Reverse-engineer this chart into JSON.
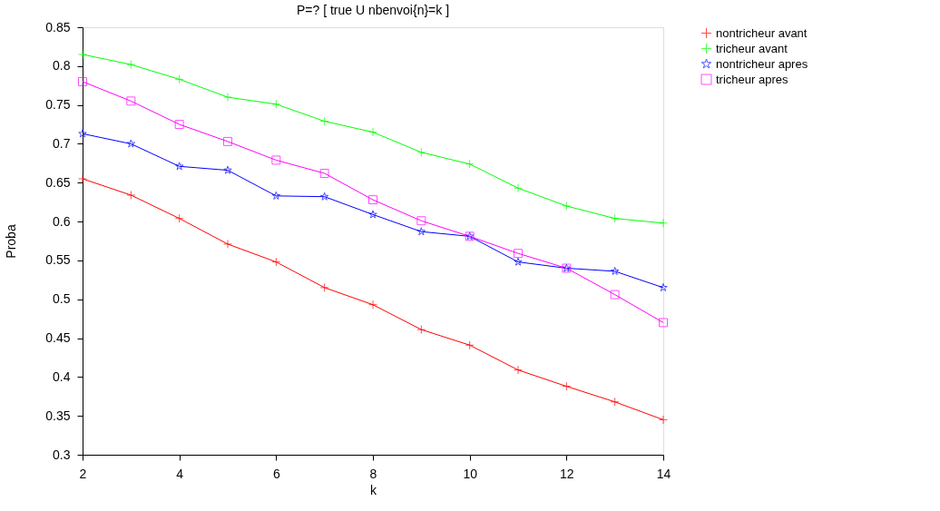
{
  "chart_data": {
    "type": "line",
    "title": "P=? [ true U nbenvoi{n}=k ]",
    "xlabel": "k",
    "ylabel": "Proba",
    "x": [
      2,
      3,
      4,
      5,
      6,
      7,
      8,
      9,
      10,
      11,
      12,
      13,
      14
    ],
    "xlim": [
      2,
      14
    ],
    "xticks": [
      2,
      4,
      6,
      8,
      10,
      12,
      14
    ],
    "ylim": [
      0.3,
      0.85
    ],
    "yticks": [
      0.3,
      0.35,
      0.4,
      0.45,
      0.5,
      0.55,
      0.6,
      0.65,
      0.7,
      0.75,
      0.8,
      0.85
    ],
    "grid": false,
    "legend": "top right",
    "line_style": "solid",
    "series": [
      {
        "name": "nontricheur avant",
        "color": "#ff0000",
        "marker": "cross",
        "values": [
          0.655,
          0.634,
          0.604,
          0.571,
          0.548,
          0.515,
          0.493,
          0.461,
          0.441,
          0.409,
          0.388,
          0.368,
          0.345
        ]
      },
      {
        "name": "tricheur avant",
        "color": "#00ff00",
        "marker": "cross",
        "values": [
          0.815,
          0.802,
          0.783,
          0.76,
          0.751,
          0.729,
          0.715,
          0.689,
          0.674,
          0.643,
          0.62,
          0.604,
          0.598
        ]
      },
      {
        "name": "nontricheur apres",
        "color": "#0000ff",
        "marker": "star",
        "values": [
          0.713,
          0.7,
          0.671,
          0.666,
          0.633,
          0.632,
          0.609,
          0.587,
          0.581,
          0.548,
          0.54,
          0.536,
          0.515
        ]
      },
      {
        "name": "tricheur apres",
        "color": "#ff00ff",
        "marker": "square",
        "values": [
          0.78,
          0.755,
          0.725,
          0.703,
          0.679,
          0.662,
          0.628,
          0.601,
          0.581,
          0.559,
          0.54,
          0.506,
          0.47
        ]
      }
    ]
  }
}
